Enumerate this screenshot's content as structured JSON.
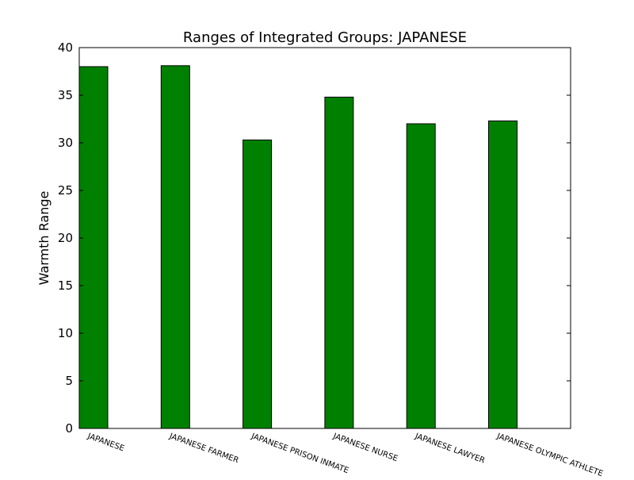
{
  "chart_data": {
    "type": "bar",
    "title": "Ranges of Integrated Groups: JAPANESE",
    "xlabel": "",
    "ylabel": "Warmth Range",
    "categories": [
      "JAPANESE",
      "JAPANESE FARMER",
      "JAPANESE PRISON INMATE",
      "JAPANESE NURSE",
      "JAPANESE LAWYER",
      "JAPANESE OLYMPIC ATHLETE"
    ],
    "values": [
      38.0,
      38.1,
      30.3,
      34.8,
      32.0,
      32.3
    ],
    "ylim": [
      0,
      40
    ],
    "yticks": [
      0,
      5,
      10,
      15,
      20,
      25,
      30,
      35,
      40
    ],
    "bar_color": "#008000",
    "edge_color": "#000000",
    "grid": false,
    "legend": "none"
  }
}
